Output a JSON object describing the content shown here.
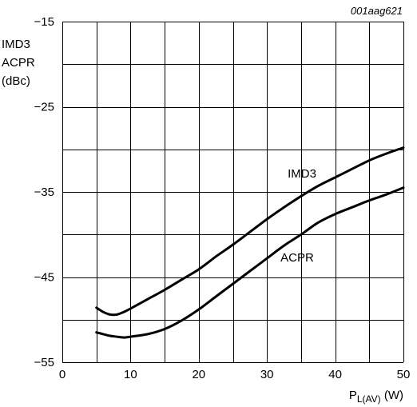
{
  "chart_data": {
    "type": "line",
    "figure_code": "001aag621",
    "ylabel_lines": [
      "IMD3",
      "ACPR",
      "(dBc)"
    ],
    "xlabel_main": "P",
    "xlabel_sub": "L(AV)",
    "xlabel_unit": " (W)",
    "xlim": [
      0,
      50
    ],
    "ylim": [
      -55,
      -15
    ],
    "x_ticks": [
      0,
      10,
      20,
      30,
      40,
      50
    ],
    "x_tick_labels": [
      "0",
      "10",
      "20",
      "30",
      "40",
      "50"
    ],
    "y_ticks": [
      -15,
      -25,
      -35,
      -45,
      -55
    ],
    "y_tick_labels": [
      "−15",
      "−25",
      "−35",
      "−45",
      "−55"
    ],
    "grid": true,
    "series": [
      {
        "name": "IMD3",
        "x": [
          5,
          6,
          7,
          8,
          9,
          10,
          12.5,
          15,
          17.5,
          20,
          22.5,
          25,
          27.5,
          30,
          32.5,
          35,
          37.5,
          40,
          42.5,
          45,
          47.5,
          50
        ],
        "y": [
          -48.6,
          -49.1,
          -49.4,
          -49.4,
          -49.1,
          -48.7,
          -47.6,
          -46.5,
          -45.3,
          -44.1,
          -42.6,
          -41.2,
          -39.7,
          -38.2,
          -36.8,
          -35.5,
          -34.3,
          -33.3,
          -32.3,
          -31.3,
          -30.5,
          -29.8
        ]
      },
      {
        "name": "ACPR",
        "x": [
          5,
          6,
          7,
          8,
          9,
          10,
          12.5,
          15,
          17.5,
          20,
          22.5,
          25,
          27.5,
          30,
          32.5,
          35,
          37.5,
          40,
          42.5,
          45,
          47.5,
          50
        ],
        "y": [
          -51.5,
          -51.7,
          -51.9,
          -52.0,
          -52.1,
          -52.0,
          -51.7,
          -51.1,
          -50.1,
          -48.8,
          -47.3,
          -45.8,
          -44.3,
          -42.8,
          -41.3,
          -40.0,
          -38.6,
          -37.6,
          -36.8,
          -36.0,
          -35.3,
          -34.5
        ]
      }
    ]
  }
}
